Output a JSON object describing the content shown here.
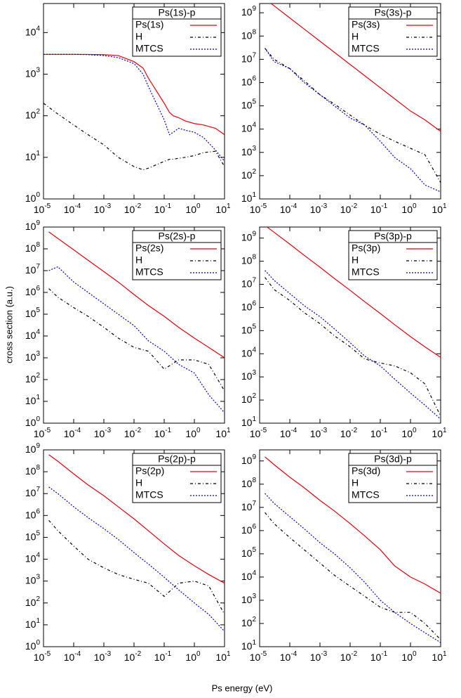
{
  "ylabel": "cross section (a.u.)",
  "xlabel": "Ps energy (eV)",
  "chart_data": [
    {
      "type": "line",
      "title": "Ps(1s)-p",
      "log_x": true,
      "log_y": true,
      "x": [
        1e-05,
        3e-05,
        0.0001,
        0.0003,
        0.001,
        0.003,
        0.01,
        0.02,
        0.03,
        0.1,
        0.15,
        0.2,
        0.3,
        0.5,
        1,
        2,
        5,
        10
      ],
      "series": [
        {
          "name": "Ps(1s)",
          "color": "#e8000b",
          "dash": "solid",
          "values": [
            3000,
            3000,
            3000,
            2980,
            2950,
            2800,
            2000,
            1400,
            800,
            200,
            120,
            100,
            90,
            75,
            65,
            60,
            50,
            35
          ]
        },
        {
          "name": "H",
          "color": "#000000",
          "dash": "dashdot",
          "values": [
            200,
            110,
            60,
            35,
            20,
            10,
            6,
            5,
            5.5,
            8,
            9,
            9,
            9.5,
            10,
            11,
            13,
            14,
            6
          ]
        },
        {
          "name": "MTCS",
          "color": "#0000cc",
          "dash": "dotted",
          "values": [
            3000,
            3000,
            3000,
            2950,
            2800,
            2500,
            1800,
            1000,
            500,
            80,
            35,
            40,
            50,
            45,
            40,
            30,
            15,
            8
          ]
        }
      ],
      "xlim": [
        1e-05,
        10
      ],
      "ylim": [
        1,
        50000
      ],
      "xticks": [
        {
          "value": 1e-05,
          "label": "10",
          "exp": "-5"
        },
        {
          "value": 0.0001,
          "label": "10",
          "exp": "-4"
        },
        {
          "value": 0.001,
          "label": "10",
          "exp": "-3"
        },
        {
          "value": 0.01,
          "label": "10",
          "exp": "-2"
        },
        {
          "value": 0.1,
          "label": "10",
          "exp": "-1"
        },
        {
          "value": 1,
          "label": "10",
          "exp": "0"
        },
        {
          "value": 10,
          "label": "10",
          "exp": "1"
        }
      ],
      "yticks": [
        {
          "value": 1,
          "label": "10",
          "exp": "0"
        },
        {
          "value": 10,
          "label": "10",
          "exp": "1"
        },
        {
          "value": 100,
          "label": "10",
          "exp": "2"
        },
        {
          "value": 1000,
          "label": "10",
          "exp": "3"
        },
        {
          "value": 10000,
          "label": "10",
          "exp": "4"
        }
      ]
    },
    {
      "type": "line",
      "title": "Ps(3s)-p",
      "log_x": true,
      "log_y": true,
      "x": [
        1.5e-05,
        3e-05,
        0.0001,
        0.0003,
        0.001,
        0.003,
        0.01,
        0.03,
        0.1,
        0.3,
        1,
        3,
        10
      ],
      "series": [
        {
          "name": "Ps(3s)",
          "color": "#e8000b",
          "dash": "solid",
          "values": [
            4000000000,
            2000000000,
            600000000,
            200000000,
            60000000,
            20000000,
            6000000,
            2000000,
            600000,
            200000,
            60000,
            25000,
            8000
          ]
        },
        {
          "name": "H",
          "color": "#000000",
          "dash": "dashdot",
          "values": [
            30000000,
            10000000,
            4000000,
            1200000,
            300000,
            120000,
            40000,
            15000,
            6000,
            3000,
            1500,
            800,
            50
          ]
        },
        {
          "name": "MTCS",
          "color": "#0000cc",
          "dash": "dotted",
          "values": [
            30000000,
            8000000,
            4000000,
            1000000,
            300000,
            100000,
            30000,
            15000,
            3000,
            600,
            200,
            40,
            20
          ]
        }
      ],
      "xlim": [
        1e-05,
        10
      ],
      "ylim": [
        10,
        2500000000
      ],
      "xticks": [
        {
          "value": 1e-05,
          "label": "10",
          "exp": "-5"
        },
        {
          "value": 0.0001,
          "label": "10",
          "exp": "-4"
        },
        {
          "value": 0.001,
          "label": "10",
          "exp": "-3"
        },
        {
          "value": 0.01,
          "label": "10",
          "exp": "-2"
        },
        {
          "value": 0.1,
          "label": "10",
          "exp": "-1"
        },
        {
          "value": 1,
          "label": "10",
          "exp": "0"
        },
        {
          "value": 10,
          "label": "10",
          "exp": "1"
        }
      ],
      "yticks": [
        {
          "value": 10,
          "label": "10",
          "exp": "1"
        },
        {
          "value": 100,
          "label": "10",
          "exp": "2"
        },
        {
          "value": 1000,
          "label": "10",
          "exp": "3"
        },
        {
          "value": 10000,
          "label": "10",
          "exp": "4"
        },
        {
          "value": 100000,
          "label": "10",
          "exp": "5"
        },
        {
          "value": 1000000,
          "label": "10",
          "exp": "6"
        },
        {
          "value": 10000000,
          "label": "10",
          "exp": "7"
        },
        {
          "value": 100000000,
          "label": "10",
          "exp": "8"
        },
        {
          "value": 1000000000,
          "label": "10",
          "exp": "9"
        }
      ]
    },
    {
      "type": "line",
      "title": "Ps(2s)-p",
      "log_x": true,
      "log_y": true,
      "x": [
        1.5e-05,
        3e-05,
        0.0001,
        0.0003,
        0.001,
        0.003,
        0.01,
        0.03,
        0.1,
        0.3,
        1,
        3,
        10
      ],
      "series": [
        {
          "name": "Ps(2s)",
          "color": "#e8000b",
          "dash": "solid",
          "values": [
            600000000,
            300000000,
            90000000,
            30000000,
            9000000,
            3000000,
            800000,
            250000,
            80000,
            25000,
            8000,
            3000,
            1000
          ]
        },
        {
          "name": "H",
          "color": "#000000",
          "dash": "dashdot",
          "values": [
            1500000,
            600000,
            200000,
            80000,
            25000,
            8000,
            3000,
            2000,
            300,
            800,
            800,
            500,
            30
          ]
        },
        {
          "name": "MTCS",
          "color": "#0000cc",
          "dash": "dotted",
          "values": [
            10000000,
            15000000,
            3000000,
            1000000,
            300000,
            100000,
            30000,
            6000,
            2000,
            500,
            200,
            20,
            3
          ]
        }
      ],
      "xlim": [
        1e-05,
        10
      ],
      "ylim": [
        1,
        1000000000
      ],
      "xticks": [
        {
          "value": 1e-05,
          "label": "10",
          "exp": "-5"
        },
        {
          "value": 0.0001,
          "label": "10",
          "exp": "-4"
        },
        {
          "value": 0.001,
          "label": "10",
          "exp": "-3"
        },
        {
          "value": 0.01,
          "label": "10",
          "exp": "-2"
        },
        {
          "value": 0.1,
          "label": "10",
          "exp": "-1"
        },
        {
          "value": 1,
          "label": "10",
          "exp": "0"
        },
        {
          "value": 10,
          "label": "10",
          "exp": "1"
        }
      ],
      "yticks": [
        {
          "value": 1,
          "label": "10",
          "exp": "0"
        },
        {
          "value": 10,
          "label": "10",
          "exp": "1"
        },
        {
          "value": 100,
          "label": "10",
          "exp": "2"
        },
        {
          "value": 1000,
          "label": "10",
          "exp": "3"
        },
        {
          "value": 10000,
          "label": "10",
          "exp": "4"
        },
        {
          "value": 100000,
          "label": "10",
          "exp": "5"
        },
        {
          "value": 1000000,
          "label": "10",
          "exp": "6"
        },
        {
          "value": 10000000,
          "label": "10",
          "exp": "7"
        },
        {
          "value": 100000000,
          "label": "10",
          "exp": "8"
        },
        {
          "value": 1000000000,
          "label": "10",
          "exp": "9"
        }
      ]
    },
    {
      "type": "line",
      "title": "Ps(3p)-p",
      "log_x": true,
      "log_y": true,
      "x": [
        1.5e-05,
        3e-05,
        0.0001,
        0.0003,
        0.001,
        0.003,
        0.01,
        0.03,
        0.1,
        0.3,
        1,
        3,
        10
      ],
      "series": [
        {
          "name": "Ps(3p)",
          "color": "#e8000b",
          "dash": "solid",
          "values": [
            3500000000,
            1800000000,
            550000000,
            180000000,
            55000000,
            18000000,
            5500000,
            1800000,
            550000,
            180000,
            55000,
            20000,
            7000
          ]
        },
        {
          "name": "H",
          "color": "#000000",
          "dash": "dashdot",
          "values": [
            20000000,
            6000000,
            2000000,
            600000,
            200000,
            60000,
            20000,
            6000,
            4000,
            3000,
            1500,
            500,
            20
          ]
        },
        {
          "name": "MTCS",
          "color": "#0000cc",
          "dash": "dotted",
          "values": [
            40000000,
            15000000,
            4000000,
            1200000,
            400000,
            120000,
            30000,
            8000,
            3000,
            800,
            200,
            60,
            15
          ]
        }
      ],
      "xlim": [
        1e-05,
        10
      ],
      "ylim": [
        10,
        3000000000
      ],
      "xticks": [
        {
          "value": 1e-05,
          "label": "10",
          "exp": "-5"
        },
        {
          "value": 0.0001,
          "label": "10",
          "exp": "-4"
        },
        {
          "value": 0.001,
          "label": "10",
          "exp": "-3"
        },
        {
          "value": 0.01,
          "label": "10",
          "exp": "-2"
        },
        {
          "value": 0.1,
          "label": "10",
          "exp": "-1"
        },
        {
          "value": 1,
          "label": "10",
          "exp": "0"
        },
        {
          "value": 10,
          "label": "10",
          "exp": "1"
        }
      ],
      "yticks": [
        {
          "value": 10,
          "label": "10",
          "exp": "1"
        },
        {
          "value": 100,
          "label": "10",
          "exp": "2"
        },
        {
          "value": 1000,
          "label": "10",
          "exp": "3"
        },
        {
          "value": 10000,
          "label": "10",
          "exp": "4"
        },
        {
          "value": 100000,
          "label": "10",
          "exp": "5"
        },
        {
          "value": 1000000,
          "label": "10",
          "exp": "6"
        },
        {
          "value": 10000000,
          "label": "10",
          "exp": "7"
        },
        {
          "value": 100000000,
          "label": "10",
          "exp": "8"
        },
        {
          "value": 1000000000,
          "label": "10",
          "exp": "9"
        }
      ]
    },
    {
      "type": "line",
      "title": "Ps(2p)-p",
      "log_x": true,
      "log_y": true,
      "x": [
        1.5e-05,
        3e-05,
        0.0001,
        0.0003,
        0.001,
        0.003,
        0.01,
        0.03,
        0.1,
        0.3,
        1,
        3,
        10
      ],
      "series": [
        {
          "name": "Ps(2p)",
          "color": "#e8000b",
          "dash": "solid",
          "values": [
            600000000,
            300000000,
            80000000,
            25000000,
            8000000,
            2500000,
            700000,
            200000,
            50000,
            15000,
            5000,
            2000,
            800
          ]
        },
        {
          "name": "H",
          "color": "#000000",
          "dash": "dashdot",
          "values": [
            600000,
            200000,
            40000,
            10000,
            4000,
            2000,
            1200,
            800,
            200,
            800,
            1000,
            600,
            30
          ]
        },
        {
          "name": "MTCS",
          "color": "#0000cc",
          "dash": "dotted",
          "values": [
            20000000,
            10000000,
            2500000,
            800000,
            250000,
            80000,
            20000,
            6000,
            1500,
            400,
            100,
            30,
            5
          ]
        }
      ],
      "xlim": [
        1e-05,
        10
      ],
      "ylim": [
        1,
        1000000000
      ],
      "xticks": [
        {
          "value": 1e-05,
          "label": "10",
          "exp": "-5"
        },
        {
          "value": 0.0001,
          "label": "10",
          "exp": "-4"
        },
        {
          "value": 0.001,
          "label": "10",
          "exp": "-3"
        },
        {
          "value": 0.01,
          "label": "10",
          "exp": "-2"
        },
        {
          "value": 0.1,
          "label": "10",
          "exp": "-1"
        },
        {
          "value": 1,
          "label": "10",
          "exp": "0"
        },
        {
          "value": 10,
          "label": "10",
          "exp": "1"
        }
      ],
      "yticks": [
        {
          "value": 1,
          "label": "10",
          "exp": "0"
        },
        {
          "value": 10,
          "label": "10",
          "exp": "1"
        },
        {
          "value": 100,
          "label": "10",
          "exp": "2"
        },
        {
          "value": 1000,
          "label": "10",
          "exp": "3"
        },
        {
          "value": 10000,
          "label": "10",
          "exp": "4"
        },
        {
          "value": 100000,
          "label": "10",
          "exp": "5"
        },
        {
          "value": 1000000,
          "label": "10",
          "exp": "6"
        },
        {
          "value": 10000000,
          "label": "10",
          "exp": "7"
        },
        {
          "value": 100000000,
          "label": "10",
          "exp": "8"
        },
        {
          "value": 1000000000,
          "label": "10",
          "exp": "9"
        }
      ]
    },
    {
      "type": "line",
      "title": "Ps(3d)-p",
      "log_x": true,
      "log_y": true,
      "x": [
        1.5e-05,
        3e-05,
        0.0001,
        0.0003,
        0.001,
        0.003,
        0.01,
        0.03,
        0.1,
        0.3,
        1,
        3,
        10
      ],
      "series": [
        {
          "name": "Ps(3d)",
          "color": "#e8000b",
          "dash": "solid",
          "values": [
            1500000000,
            700000000,
            200000000,
            70000000,
            20000000,
            7000000,
            2000000,
            600000,
            150000,
            30000,
            10000,
            5000,
            2000
          ]
        },
        {
          "name": "H",
          "color": "#000000",
          "dash": "dashdot",
          "values": [
            6000000,
            2000000,
            500000,
            150000,
            40000,
            12000,
            4000,
            1500,
            500,
            300,
            300,
            100,
            20
          ]
        },
        {
          "name": "MTCS",
          "color": "#0000cc",
          "dash": "dotted",
          "values": [
            40000000,
            15000000,
            4000000,
            1200000,
            300000,
            100000,
            25000,
            6000,
            1000,
            300,
            100,
            40,
            15
          ]
        }
      ],
      "xlim": [
        1e-05,
        10
      ],
      "ylim": [
        10,
        3000000000
      ],
      "xticks": [
        {
          "value": 1e-05,
          "label": "10",
          "exp": "-5"
        },
        {
          "value": 0.0001,
          "label": "10",
          "exp": "-4"
        },
        {
          "value": 0.001,
          "label": "10",
          "exp": "-3"
        },
        {
          "value": 0.01,
          "label": "10",
          "exp": "-2"
        },
        {
          "value": 0.1,
          "label": "10",
          "exp": "-1"
        },
        {
          "value": 1,
          "label": "10",
          "exp": "0"
        },
        {
          "value": 10,
          "label": "10",
          "exp": "1"
        }
      ],
      "yticks": [
        {
          "value": 10,
          "label": "10",
          "exp": "1"
        },
        {
          "value": 100,
          "label": "10",
          "exp": "2"
        },
        {
          "value": 1000,
          "label": "10",
          "exp": "3"
        },
        {
          "value": 10000,
          "label": "10",
          "exp": "4"
        },
        {
          "value": 100000,
          "label": "10",
          "exp": "5"
        },
        {
          "value": 1000000,
          "label": "10",
          "exp": "6"
        },
        {
          "value": 10000000,
          "label": "10",
          "exp": "7"
        },
        {
          "value": 100000000,
          "label": "10",
          "exp": "8"
        },
        {
          "value": 1000000000,
          "label": "10",
          "exp": "9"
        }
      ]
    }
  ]
}
